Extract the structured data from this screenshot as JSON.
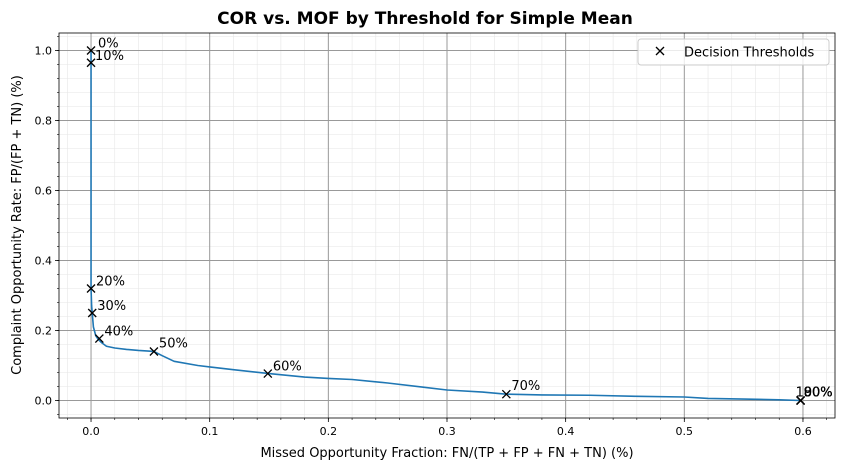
{
  "chart_data": {
    "type": "line",
    "title": "COR vs. MOF by Threshold for Simple Mean",
    "xlabel": "Missed Opportunity Fraction: FN/(TP + FP + FN + TN) (%)",
    "ylabel": "Complaint Opportunity Rate: FP/(FP + TN) (%)",
    "xlim": [
      -0.027,
      0.627
    ],
    "ylim": [
      -0.05,
      1.05
    ],
    "x_ticks": [
      0.0,
      0.1,
      0.2,
      0.3,
      0.4,
      0.5,
      0.6
    ],
    "x_tick_labels": [
      "0.0",
      "0.1",
      "0.2",
      "0.3",
      "0.4",
      "0.5",
      "0.6"
    ],
    "y_ticks": [
      0.0,
      0.2,
      0.4,
      0.6,
      0.8,
      1.0
    ],
    "y_tick_labels": [
      "0.0",
      "0.2",
      "0.4",
      "0.6",
      "0.8",
      "1.0"
    ],
    "grid": true,
    "legend": {
      "position": "top-right",
      "entries": [
        "Decision Thresholds"
      ]
    },
    "series": [
      {
        "name": "",
        "color": "#1f77b4",
        "x": [
          0.0,
          0.0,
          0.0,
          0.0,
          0.0005,
          0.001,
          0.002,
          0.004,
          0.006,
          0.009,
          0.013,
          0.02,
          0.03,
          0.04,
          0.05,
          0.053,
          0.06,
          0.07,
          0.09,
          0.1,
          0.12,
          0.15,
          0.18,
          0.2,
          0.22,
          0.25,
          0.28,
          0.3,
          0.33,
          0.35,
          0.38,
          0.42,
          0.46,
          0.5,
          0.52,
          0.55,
          0.58,
          0.598
        ],
        "y": [
          1.0,
          0.965,
          0.6,
          0.32,
          0.27,
          0.25,
          0.21,
          0.185,
          0.175,
          0.165,
          0.155,
          0.15,
          0.146,
          0.143,
          0.141,
          0.14,
          0.128,
          0.112,
          0.1,
          0.096,
          0.088,
          0.077,
          0.067,
          0.063,
          0.06,
          0.05,
          0.038,
          0.03,
          0.024,
          0.018,
          0.016,
          0.015,
          0.012,
          0.01,
          0.006,
          0.004,
          0.002,
          0.0
        ]
      }
    ],
    "markers": {
      "name": "Decision Thresholds",
      "symbol": "x",
      "color": "#000000",
      "points": [
        {
          "label": "0%",
          "x": 0.0,
          "y": 1.0
        },
        {
          "label": "10%",
          "x": 0.0,
          "y": 0.965
        },
        {
          "label": "20%",
          "x": 0.0,
          "y": 0.32
        },
        {
          "label": "30%",
          "x": 0.001,
          "y": 0.25
        },
        {
          "label": "40%",
          "x": 0.007,
          "y": 0.177
        },
        {
          "label": "50%",
          "x": 0.053,
          "y": 0.14
        },
        {
          "label": "60%",
          "x": 0.149,
          "y": 0.077
        },
        {
          "label": "70%",
          "x": 0.35,
          "y": 0.018
        },
        {
          "label": "80%",
          "x": 0.598,
          "y": 0.0
        },
        {
          "label": "90%",
          "x": 0.598,
          "y": 0.0
        },
        {
          "label": "100%",
          "x": 0.598,
          "y": 0.0
        }
      ]
    }
  }
}
